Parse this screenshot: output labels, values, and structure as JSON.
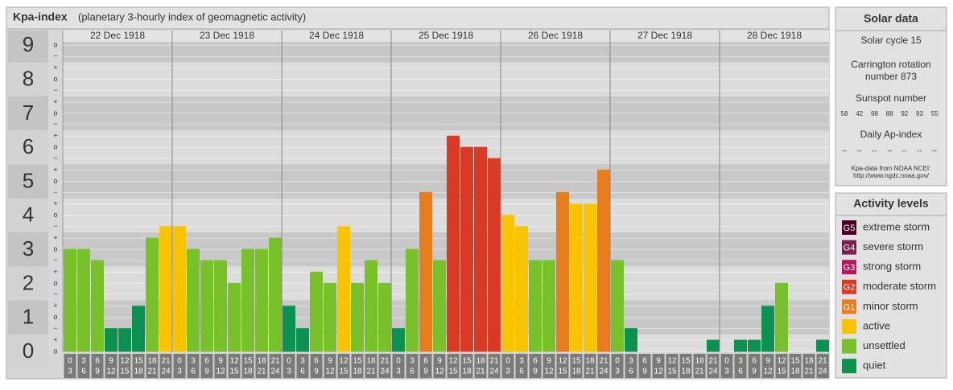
{
  "title": "Kpa-index",
  "subtitle": "(planetary 3-hourly index of geomagnetic activity)",
  "chart_data": {
    "type": "bar",
    "ylim": [
      0,
      9
    ],
    "yticks": [
      0,
      1,
      2,
      3,
      4,
      5,
      6,
      7,
      8,
      9
    ],
    "subticks": [
      {
        "value": 0,
        "label": "o"
      },
      {
        "value": 0.33,
        "label": "+"
      },
      {
        "value": 0.67,
        "label": "−"
      },
      {
        "value": 1,
        "label": "o"
      },
      {
        "value": 1.33,
        "label": "+"
      },
      {
        "value": 1.67,
        "label": "−"
      },
      {
        "value": 2,
        "label": "o"
      },
      {
        "value": 2.33,
        "label": "+"
      },
      {
        "value": 2.67,
        "label": "−"
      },
      {
        "value": 3,
        "label": "o"
      },
      {
        "value": 3.33,
        "label": "+"
      },
      {
        "value": 3.67,
        "label": "−"
      },
      {
        "value": 4,
        "label": "o"
      },
      {
        "value": 4.33,
        "label": "+"
      },
      {
        "value": 4.67,
        "label": "−"
      },
      {
        "value": 5,
        "label": "o"
      },
      {
        "value": 5.33,
        "label": "+"
      },
      {
        "value": 5.67,
        "label": "−"
      },
      {
        "value": 6,
        "label": "o"
      },
      {
        "value": 6.33,
        "label": "+"
      },
      {
        "value": 6.67,
        "label": "−"
      },
      {
        "value": 7,
        "label": "o"
      },
      {
        "value": 7.33,
        "label": "+"
      },
      {
        "value": 7.67,
        "label": "−"
      },
      {
        "value": 8,
        "label": "o"
      },
      {
        "value": 8.33,
        "label": "+"
      },
      {
        "value": 8.67,
        "label": "−"
      },
      {
        "value": 9,
        "label": "o"
      }
    ],
    "hour_starts": [
      0,
      3,
      6,
      9,
      12,
      15,
      18,
      21
    ],
    "hour_ends": [
      3,
      6,
      9,
      12,
      15,
      18,
      21,
      24
    ],
    "days": [
      {
        "date": "22 Dec 1918",
        "values": [
          3,
          3,
          2.67,
          0.67,
          0.67,
          1.33,
          3.33,
          3.67
        ],
        "colors": [
          "#79c12b",
          "#79c12b",
          "#79c12b",
          "#0c9150",
          "#0c9150",
          "#0c9150",
          "#79c12b",
          "#f8c300"
        ]
      },
      {
        "date": "23 Dec 1918",
        "values": [
          3.67,
          3,
          2.67,
          2.67,
          2,
          3,
          3,
          3.33
        ],
        "colors": [
          "#f8c300",
          "#79c12b",
          "#79c12b",
          "#79c12b",
          "#79c12b",
          "#79c12b",
          "#79c12b",
          "#79c12b"
        ]
      },
      {
        "date": "24 Dec 1918",
        "values": [
          1.33,
          0.67,
          2.33,
          2,
          3.67,
          2,
          2.67,
          2
        ],
        "colors": [
          "#0c9150",
          "#0c9150",
          "#79c12b",
          "#79c12b",
          "#f8c300",
          "#79c12b",
          "#79c12b",
          "#79c12b"
        ]
      },
      {
        "date": "25 Dec 1918",
        "values": [
          0.67,
          3,
          4.67,
          2.67,
          6.33,
          6,
          6,
          5.67
        ],
        "colors": [
          "#0c9150",
          "#79c12b",
          "#e87d1e",
          "#79c12b",
          "#d93a23",
          "#d93a23",
          "#d93a23",
          "#d93a23"
        ]
      },
      {
        "date": "26 Dec 1918",
        "values": [
          4,
          3.67,
          2.67,
          2.67,
          4.67,
          4.33,
          4.33,
          5.33
        ],
        "colors": [
          "#f8c300",
          "#f8c300",
          "#79c12b",
          "#79c12b",
          "#e87d1e",
          "#f8c300",
          "#f8c300",
          "#e87d1e"
        ]
      },
      {
        "date": "27 Dec 1918",
        "values": [
          2.67,
          0.67,
          0,
          0,
          0,
          0,
          0,
          0.33
        ],
        "colors": [
          "#79c12b",
          "#0c9150",
          "#0c9150",
          "#0c9150",
          "#0c9150",
          "#0c9150",
          "#0c9150",
          "#0c9150"
        ]
      },
      {
        "date": "28 Dec 1918",
        "values": [
          0,
          0.33,
          0.33,
          1.33,
          2,
          0,
          0,
          0.33
        ],
        "colors": [
          "#0c9150",
          "#0c9150",
          "#0c9150",
          "#0c9150",
          "#79c12b",
          "#0c9150",
          "#0c9150",
          "#0c9150"
        ]
      }
    ]
  },
  "solar_data": {
    "title": "Solar data",
    "solar_cycle": "Solar cycle 15",
    "carrington": [
      "Carrington rotation",
      "number 873"
    ],
    "sunspot_title": "Sunspot number",
    "sunspots": [
      58,
      42,
      98,
      88,
      92,
      93,
      55
    ],
    "ap_title": "Daily Ap-index",
    "ap": [
      "--",
      "--",
      "--",
      "--",
      "--",
      "--",
      "--"
    ],
    "source": [
      "Kpa-data from NOAA NCEI:",
      "http://www.ngdc.noaa.gov/"
    ]
  },
  "activity_levels": {
    "title": "Activity levels",
    "items": [
      {
        "badge": "G5",
        "label": "extreme storm",
        "color": "#4a0022"
      },
      {
        "badge": "G4",
        "label": "severe storm",
        "color": "#7b1f4f"
      },
      {
        "badge": "G3",
        "label": "strong storm",
        "color": "#b3175c"
      },
      {
        "badge": "G2",
        "label": "moderate storm",
        "color": "#d93a23"
      },
      {
        "badge": "G1",
        "label": "minor storm",
        "color": "#e87d1e"
      },
      {
        "label": "active",
        "color": "#f8c300"
      },
      {
        "label": "unsettled",
        "color": "#79c12b"
      },
      {
        "label": "quiet",
        "color": "#0c9150"
      }
    ]
  }
}
